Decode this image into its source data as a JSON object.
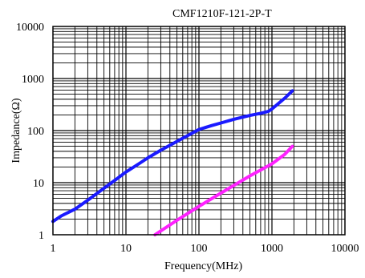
{
  "chart_data": {
    "type": "line",
    "title": "CMF1210F-121-2P-T",
    "xlabel": "Frequency(MHz)",
    "ylabel": "Impedance(Ω)",
    "x_scale": "log",
    "y_scale": "log",
    "xlim": [
      1,
      10000
    ],
    "ylim": [
      1,
      10000
    ],
    "grid": true,
    "x_ticks": [
      "1",
      "10",
      "100",
      "1000",
      "10000"
    ],
    "y_ticks": [
      "1",
      "10",
      "100",
      "1000",
      "10000"
    ],
    "series": [
      {
        "color": "#1a1aff",
        "x": [
          1,
          1.3,
          2,
          3,
          5,
          7,
          10,
          15,
          20,
          30,
          50,
          70,
          100,
          150,
          200,
          300,
          500,
          700,
          900,
          1000,
          1500,
          1900
        ],
        "y": [
          1.8,
          2.3,
          3.1,
          4.6,
          7.8,
          11,
          16,
          23,
          30,
          42,
          62,
          80,
          105,
          125,
          140,
          165,
          195,
          215,
          235,
          260,
          420,
          580
        ]
      },
      {
        "color": "#ff22ff",
        "x": [
          25,
          50,
          100,
          200,
          500,
          1000,
          1500,
          1900
        ],
        "y": [
          1,
          1.9,
          3.5,
          6.3,
          13.5,
          23,
          35,
          50
        ]
      }
    ]
  }
}
